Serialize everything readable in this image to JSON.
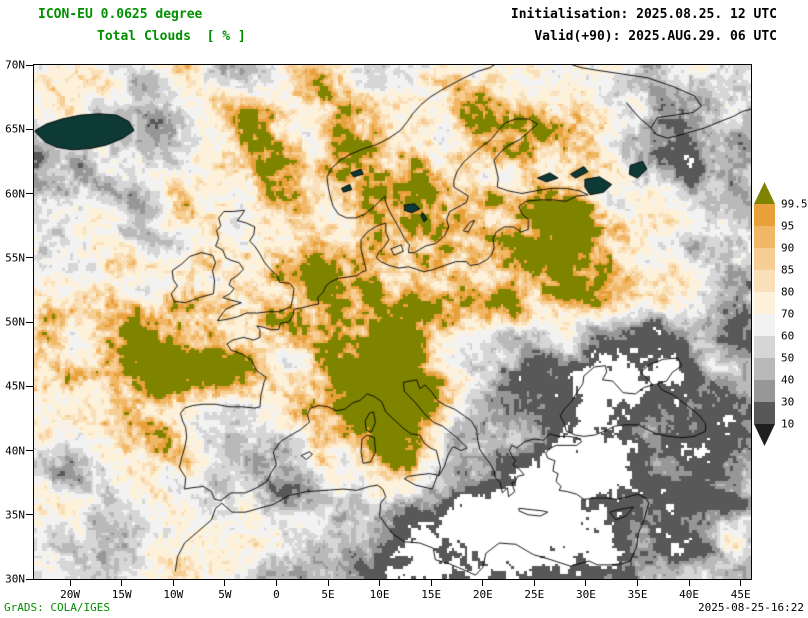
{
  "header": {
    "model_line": "ICON-EU 0.0625 degree",
    "variable_line": "Total Clouds  [ % ]",
    "init_line": "Initialisation: 2025.08.25. 12 UTC",
    "valid_line": "Valid(+90): 2025.AUG.29. 06 UTC"
  },
  "footer": {
    "credit": "GrADS: COLA/IGES",
    "generated": "2025-08-25-16:22"
  },
  "axes": {
    "lat_range": [
      30,
      70
    ],
    "lon_range": [
      -23.5,
      46
    ],
    "lat_ticks": [
      {
        "label": "70N",
        "deg": 70
      },
      {
        "label": "65N",
        "deg": 65
      },
      {
        "label": "60N",
        "deg": 60
      },
      {
        "label": "55N",
        "deg": 55
      },
      {
        "label": "50N",
        "deg": 50
      },
      {
        "label": "45N",
        "deg": 45
      },
      {
        "label": "40N",
        "deg": 40
      },
      {
        "label": "35N",
        "deg": 35
      },
      {
        "label": "30N",
        "deg": 30
      }
    ],
    "lon_ticks": [
      {
        "label": "20W",
        "deg": -20
      },
      {
        "label": "15W",
        "deg": -15
      },
      {
        "label": "10W",
        "deg": -10
      },
      {
        "label": "5W",
        "deg": -5
      },
      {
        "label": "0",
        "deg": 0
      },
      {
        "label": "5E",
        "deg": 5
      },
      {
        "label": "10E",
        "deg": 10
      },
      {
        "label": "15E",
        "deg": 15
      },
      {
        "label": "20E",
        "deg": 20
      },
      {
        "label": "25E",
        "deg": 25
      },
      {
        "label": "30E",
        "deg": 30
      },
      {
        "label": "35E",
        "deg": 35
      },
      {
        "label": "40E",
        "deg": 40
      },
      {
        "label": "45E",
        "deg": 45
      }
    ]
  },
  "colorbar": {
    "levels": [
      "99.5",
      "95",
      "90",
      "85",
      "80",
      "70",
      "60",
      "50",
      "40",
      "30",
      "10"
    ],
    "colors": [
      "#7f8400",
      "#e8a03a",
      "#f0b766",
      "#f6cd92",
      "#fae0ba",
      "#fdf1d9",
      "#f2f2f2",
      "#d6d6d6",
      "#b9b9b9",
      "#979797",
      "#585858",
      "#1f1f1f"
    ],
    "clear_color": "#ffffff"
  },
  "colors": {
    "title_green": "#009000",
    "text_black": "#000000",
    "coastline": "#000000",
    "lake_dark": "#0d3a36",
    "frame": "#000000"
  }
}
